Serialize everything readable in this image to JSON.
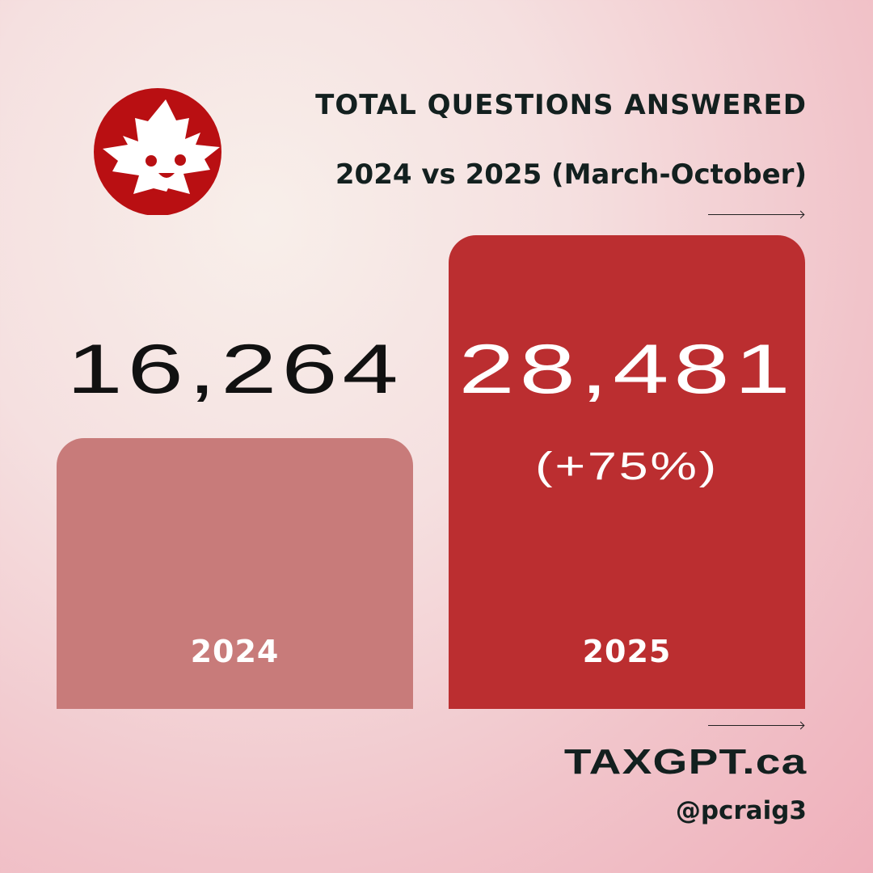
{
  "header": {
    "title": "TOTAL QUESTIONS ANSWERED",
    "subtitle": "2024 vs 2025 (March-October)"
  },
  "logo": {
    "icon": "smiling-maple-leaf-icon",
    "color": "#b90f12"
  },
  "chart_data": {
    "type": "bar",
    "title": "TOTAL QUESTIONS ANSWERED",
    "subtitle": "2024 vs 2025 (March-October)",
    "categories": [
      "2024",
      "2025"
    ],
    "values": [
      16264,
      28481
    ],
    "value_labels": [
      "16,264",
      "28,481"
    ],
    "annotations": [
      "(+75%)"
    ],
    "colors": [
      "#c87b7a",
      "#bb2e30"
    ],
    "ylim": [
      0,
      28481
    ],
    "grid": false
  },
  "footer": {
    "brand": "TAXGPT.ca",
    "handle": "@pcraig3"
  }
}
